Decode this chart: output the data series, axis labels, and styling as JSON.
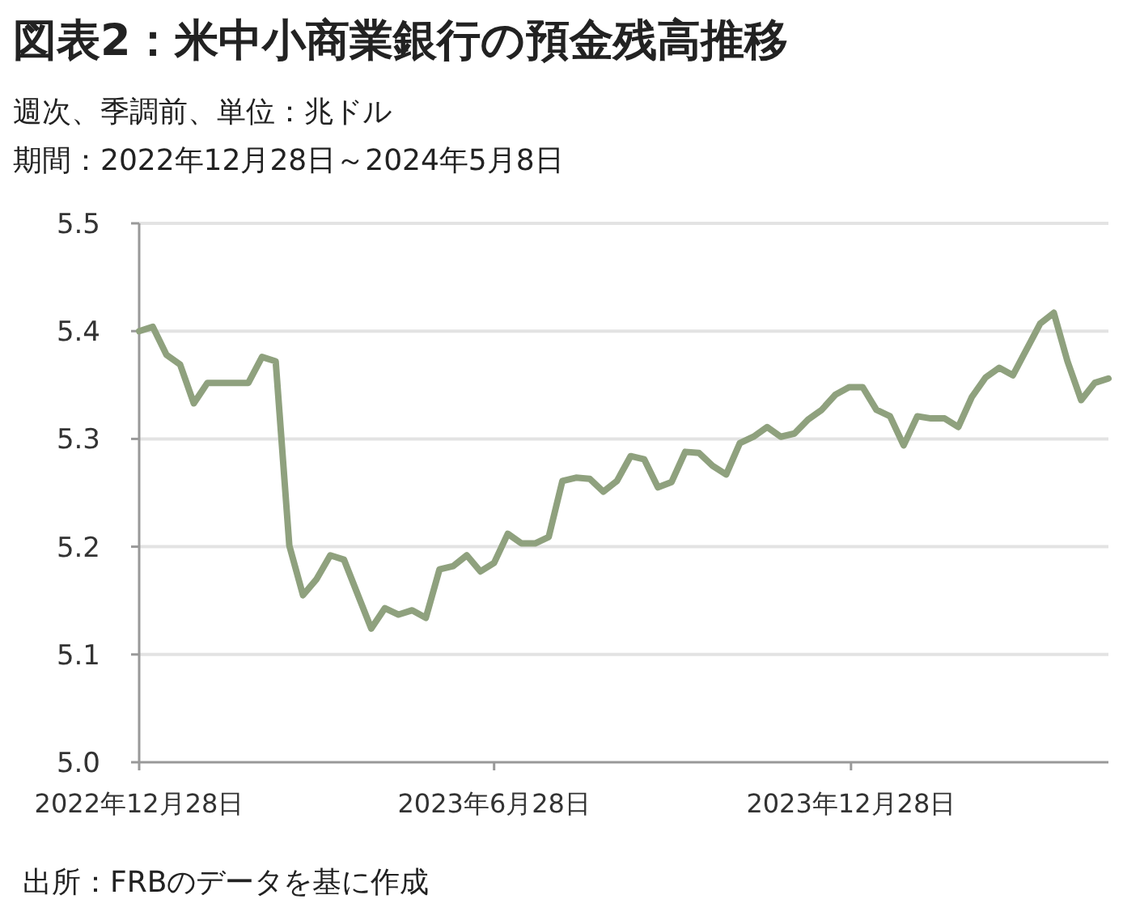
{
  "chart_data": {
    "type": "line",
    "title": "図表2：米中小商業銀行の預金残高推移",
    "subtitle": "週次、季調前、単位：兆ドル",
    "annotations": [
      "期間：2022年12月28日～2024年5月8日",
      "出所：FRBのデータを基に作成"
    ],
    "x": [
      "2022-12-28",
      "2023-01-04",
      "2023-01-11",
      "2023-01-18",
      "2023-01-25",
      "2023-02-01",
      "2023-02-08",
      "2023-02-15",
      "2023-02-22",
      "2023-03-01",
      "2023-03-08",
      "2023-03-15",
      "2023-03-22",
      "2023-03-29",
      "2023-04-05",
      "2023-04-12",
      "2023-04-19",
      "2023-04-26",
      "2023-05-03",
      "2023-05-10",
      "2023-05-17",
      "2023-05-24",
      "2023-05-31",
      "2023-06-07",
      "2023-06-14",
      "2023-06-21",
      "2023-06-28",
      "2023-07-05",
      "2023-07-12",
      "2023-07-19",
      "2023-07-26",
      "2023-08-02",
      "2023-08-09",
      "2023-08-16",
      "2023-08-23",
      "2023-08-30",
      "2023-09-06",
      "2023-09-13",
      "2023-09-20",
      "2023-09-27",
      "2023-10-04",
      "2023-10-11",
      "2023-10-18",
      "2023-10-25",
      "2023-11-01",
      "2023-11-08",
      "2023-11-15",
      "2023-11-22",
      "2023-11-29",
      "2023-12-06",
      "2023-12-13",
      "2023-12-20",
      "2023-12-27",
      "2024-01-03",
      "2024-01-10",
      "2024-01-17",
      "2024-01-24",
      "2024-01-31",
      "2024-02-07",
      "2024-02-14",
      "2024-02-21",
      "2024-02-28",
      "2024-03-06",
      "2024-03-13",
      "2024-03-20",
      "2024-03-27",
      "2024-04-03",
      "2024-04-10",
      "2024-04-17",
      "2024-04-24",
      "2024-05-01",
      "2024-05-08"
    ],
    "series": [
      {
        "color": "#8fa17e",
        "values": [
          5.4,
          5.404,
          5.378,
          5.369,
          5.333,
          5.352,
          5.352,
          5.352,
          5.352,
          5.376,
          5.372,
          5.201,
          5.155,
          5.17,
          5.192,
          5.188,
          5.156,
          5.124,
          5.143,
          5.137,
          5.141,
          5.134,
          5.179,
          5.182,
          5.192,
          5.177,
          5.185,
          5.212,
          5.203,
          5.203,
          5.209,
          5.261,
          5.264,
          5.263,
          5.251,
          5.261,
          5.284,
          5.281,
          5.255,
          5.26,
          5.288,
          5.287,
          5.275,
          5.267,
          5.296,
          5.302,
          5.311,
          5.302,
          5.305,
          5.318,
          5.327,
          5.341,
          5.348,
          5.348,
          5.327,
          5.321,
          5.294,
          5.321,
          5.319,
          5.319,
          5.311,
          5.339,
          5.357,
          5.366,
          5.359,
          5.383,
          5.407,
          5.417,
          5.372,
          5.336,
          5.352,
          5.356
        ]
      }
    ],
    "xlim": [
      "2022-12-28",
      "2024-05-08"
    ],
    "xticks": [
      {
        "value": "2022-12-28",
        "label": "2022年12月28日"
      },
      {
        "value": "2023-06-28",
        "label": "2023年6月28日"
      },
      {
        "value": "2023-12-28",
        "label": "2023年12月28日"
      }
    ],
    "ylim": [
      5.0,
      5.5
    ],
    "yticks": [
      {
        "value": 5.0,
        "label": "5.0"
      },
      5.1,
      5.2,
      5.3,
      5.4,
      5.5
    ],
    "grid": "y",
    "line_style": "solid"
  }
}
